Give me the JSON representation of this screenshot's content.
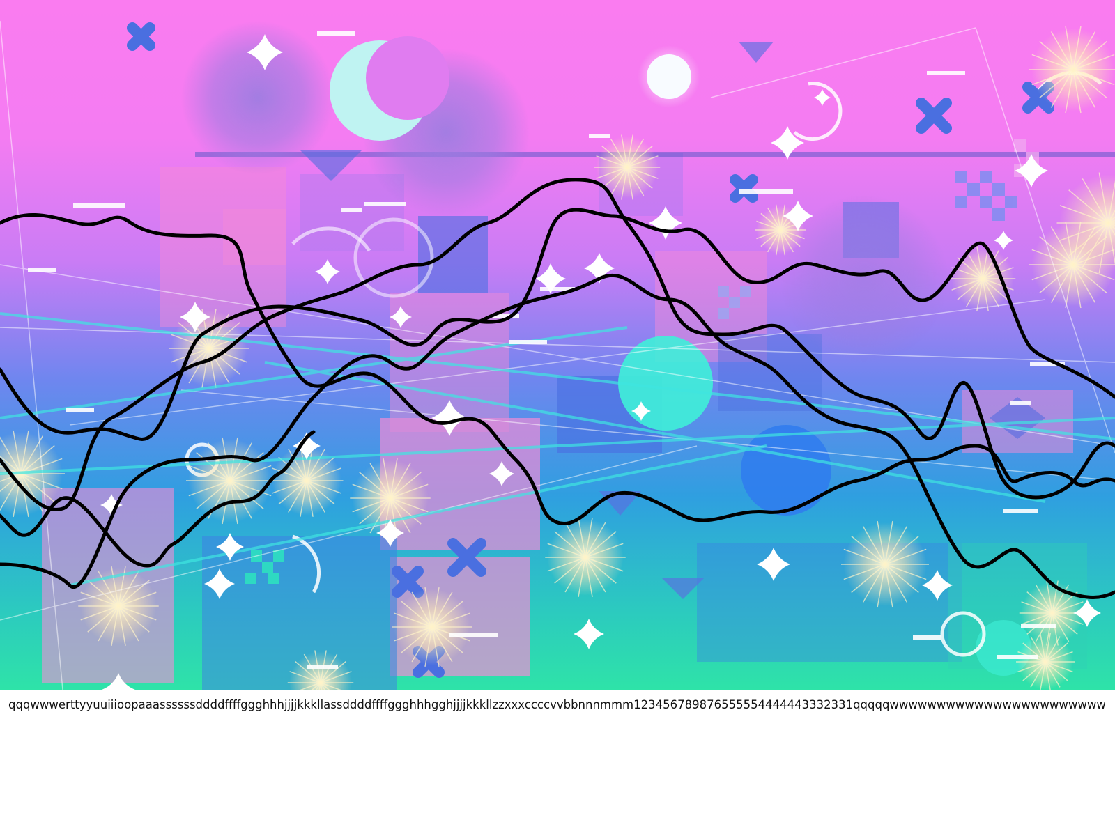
{
  "caption": {
    "text": "qqqwwwerttyyuuiiioopaaassssssddddffffggghhhjjjjkkkllassddddffffggghhhgghjjjjkkkllzzxxxccccvvbbnnnmmm123456789876555554444443332331qqqqqwwwwwwwwwwwwwwwwwwwwwww"
  },
  "artwork": {
    "palette": {
      "top": "#fa7cf0",
      "upper_mid": "#c97cf5",
      "mid": "#6f86ef",
      "lower_mid": "#2f9fe0",
      "bottom": "#2ee3a8",
      "pink_block": "#f58bd6",
      "blue_block": "#4a6fe0",
      "cyan_orb": "#3ff0d8",
      "blue_orb": "#2f7bef",
      "burst": "#fff0b3",
      "sparkle": "#ffffff",
      "curve": "#000000"
    },
    "curve_count": 5,
    "shapes": [
      "crescent-moon",
      "sun-disc",
      "sparkle-star",
      "x-cross",
      "burst",
      "checker-block",
      "ring",
      "scratch-line"
    ]
  }
}
